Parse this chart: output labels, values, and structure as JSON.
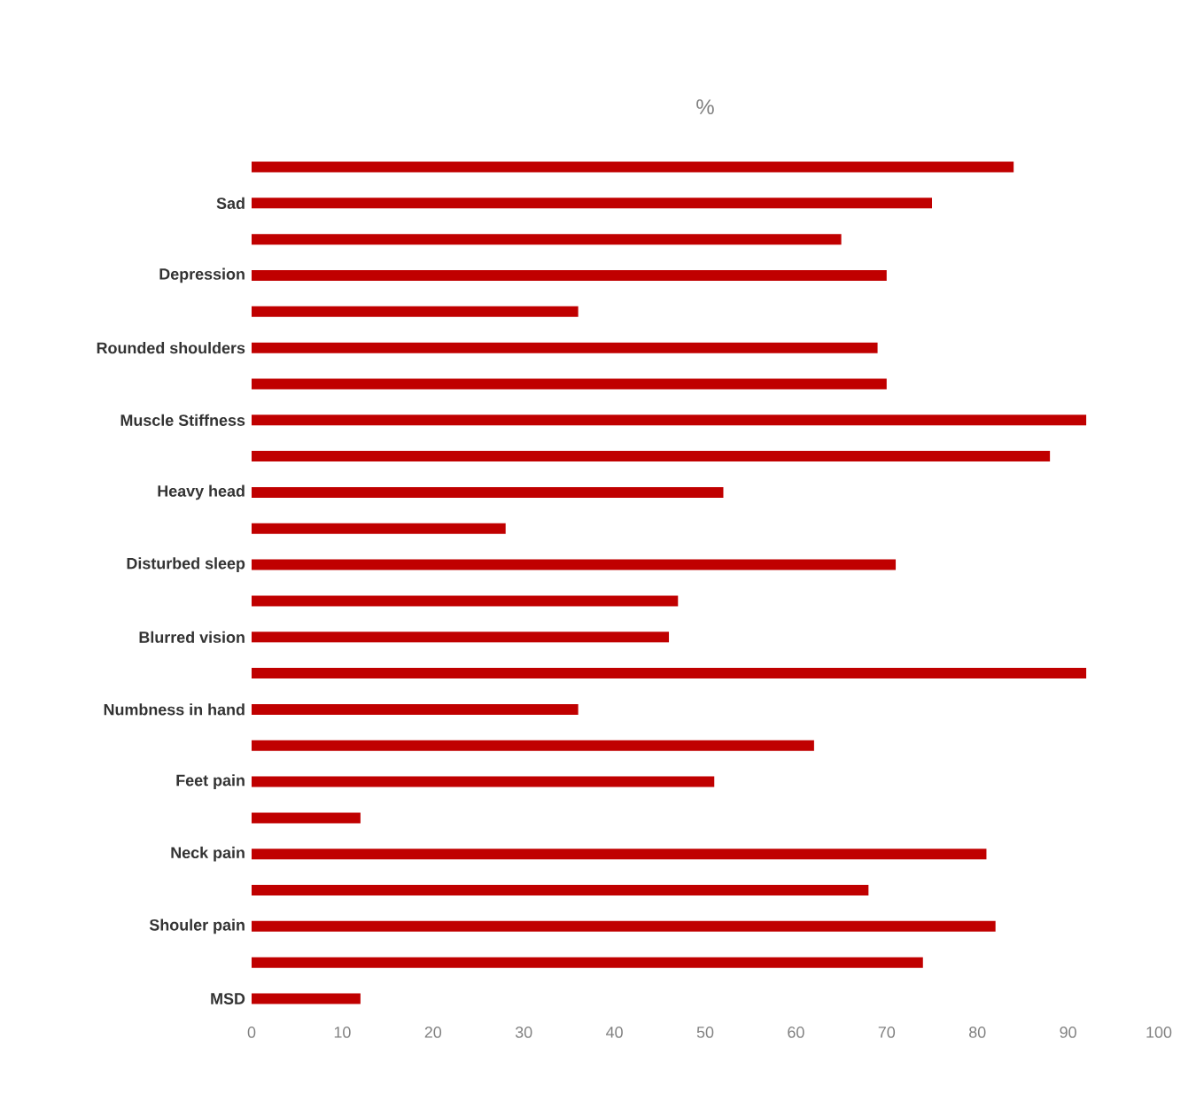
{
  "chart_data": {
    "type": "bar",
    "orientation": "horizontal",
    "title": "%",
    "categories": [
      null,
      "Sad",
      null,
      "Depression",
      null,
      "Rounded shoulders",
      null,
      "Muscle Stiffness",
      null,
      "Heavy head",
      null,
      "Disturbed sleep",
      null,
      "Blurred vision",
      null,
      "Numbness in hand",
      null,
      "Feet pain",
      null,
      "Neck pain",
      null,
      "Shouler pain",
      null,
      "MSD"
    ],
    "values": [
      84,
      75,
      65,
      70,
      36,
      69,
      70,
      92,
      88,
      52,
      28,
      71,
      47,
      46,
      92,
      36,
      62,
      51,
      12,
      81,
      68,
      82,
      74,
      12
    ],
    "color": "#c00000",
    "xlim": [
      0,
      100
    ],
    "xticks": [
      0,
      10,
      20,
      30,
      40,
      50,
      60,
      70,
      80,
      90,
      100
    ],
    "grid": false
  }
}
